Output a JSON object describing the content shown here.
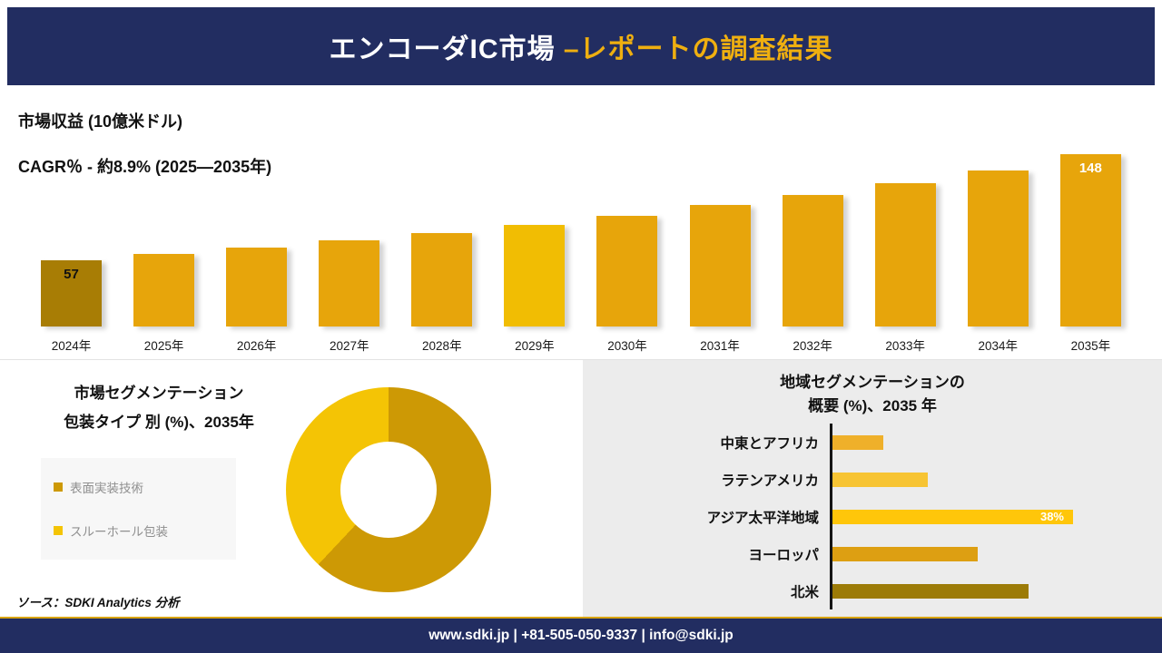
{
  "header": {
    "title_main": "エンコーダIC市場",
    "title_accent": " –レポートの調査結果"
  },
  "revenue_section": {
    "metric_label": "市場収益 (10億米ドル)",
    "cagr_label": "CAGR％ - 約8.9% (2025―2035年)"
  },
  "segmentation_section": {
    "title_line1": "市場セグメンテーション",
    "title_line2": "包装タイプ 別 (%)、2035年",
    "legend": [
      {
        "label": "表面実装技術",
        "color": "#CD9905"
      },
      {
        "label": "スルーホール包装",
        "color": "#F4C405"
      }
    ]
  },
  "regional_section": {
    "title_line1": "地域セグメンテーションの",
    "title_line2": "概要 (%)、2035 年"
  },
  "source_note": "ソース：SDKI Analytics 分析",
  "footer": {
    "text": "www.sdki.jp | +81-505-050-9337 | info@sdki.jp"
  },
  "colors": {
    "navy": "#222D61",
    "gold_accent": "#EFAF10",
    "panel_gray": "#ECECEC"
  },
  "chart_data": [
    {
      "type": "bar",
      "title": "市場収益 (10億米ドル)",
      "subtitle": "CAGR％ - 約8.9% (2025―2035年)",
      "categories": [
        "2024年",
        "2025年",
        "2026年",
        "2027年",
        "2028年",
        "2029年",
        "2030年",
        "2031年",
        "2032年",
        "2033年",
        "2034年",
        "2035年"
      ],
      "values": [
        57,
        62,
        68,
        74,
        80,
        87,
        95,
        104,
        113,
        123,
        134,
        148
      ],
      "bar_colors": [
        "#A87D05",
        "#E7A50B",
        "#E7A50B",
        "#E7A50B",
        "#E7A50B",
        "#F1BD03",
        "#E7A50B",
        "#E7A50B",
        "#E7A50B",
        "#E7A50B",
        "#E7A50B",
        "#E7A50B"
      ],
      "value_labels": [
        {
          "index": 0,
          "text": "57",
          "color": "#111111"
        },
        {
          "index": 11,
          "text": "148",
          "color": "#ffffff"
        }
      ],
      "xlabel": "",
      "ylabel": "市場収益 (10億米ドル)",
      "ylim": [
        0,
        160
      ],
      "grid": false,
      "legend_position": "none"
    },
    {
      "type": "pie",
      "donut": true,
      "title": "市場セグメンテーション 包装タイプ 別 (%)、2035年",
      "labels": [
        "表面実装技術",
        "スルーホール包装"
      ],
      "values": [
        62,
        38
      ],
      "colors": [
        "#CD9905",
        "#F4C405"
      ],
      "legend_position": "left"
    },
    {
      "type": "bar",
      "orientation": "horizontal",
      "title": "地域セグメンテーションの概要 (%)、2035 年",
      "categories": [
        "中東とアフリカ",
        "ラテンアメリカ",
        "アジア太平洋地域",
        "ヨーロッパ",
        "北米"
      ],
      "values": [
        8,
        15,
        38,
        23,
        31
      ],
      "bar_colors": [
        "#EFB02A",
        "#F7C433",
        "#FFC60A",
        "#DD9F12",
        "#9C7B07"
      ],
      "value_labels": [
        {
          "index": 2,
          "text": "38%",
          "color": "#ffffff"
        }
      ],
      "xlim": [
        0,
        40
      ],
      "grid": false,
      "legend_position": "none"
    }
  ]
}
